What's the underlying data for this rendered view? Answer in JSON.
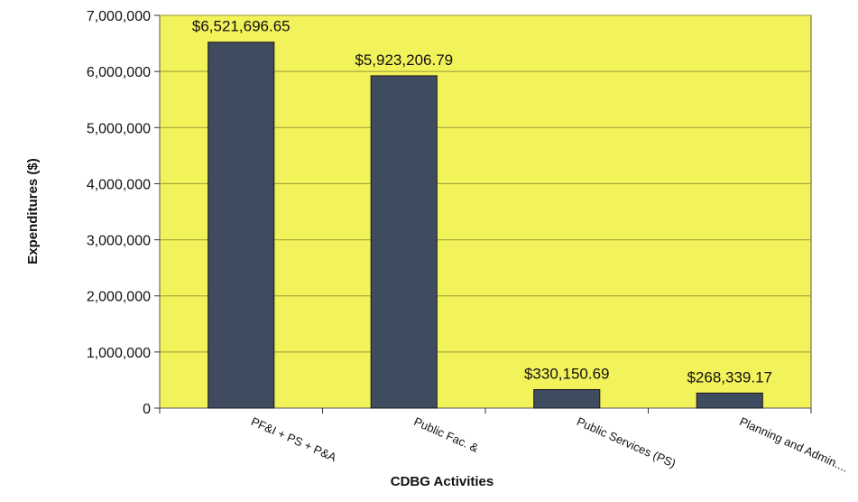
{
  "chart_data": {
    "type": "bar",
    "title": "",
    "xlabel": "CDBG Activities",
    "ylabel": "Expenditures ($)",
    "ylim": [
      0,
      7000000
    ],
    "yticks": [
      0,
      1000000,
      2000000,
      3000000,
      4000000,
      5000000,
      6000000,
      7000000
    ],
    "ytick_labels": [
      "0",
      "1,000,000",
      "2,000,000",
      "3,000,000",
      "4,000,000",
      "5,000,000",
      "6,000,000",
      "7,000,000"
    ],
    "categories": [
      "PF&I + PS + P&A",
      "Public Fac. &",
      "Public Services (PS)",
      "Planning and Admin...."
    ],
    "values": [
      6521696.65,
      5923206.79,
      330150.69,
      268339.17
    ],
    "data_labels": [
      "$6,521,696.65",
      "$5,923,206.79",
      "$330,150.69",
      "$268,339.17"
    ],
    "grid": true,
    "legend": "none",
    "colors": {
      "plot_background": "#f2f25a",
      "bar_fill": "#3f4b5f",
      "gridline": "#9a9a3a",
      "border": "#555555"
    }
  }
}
